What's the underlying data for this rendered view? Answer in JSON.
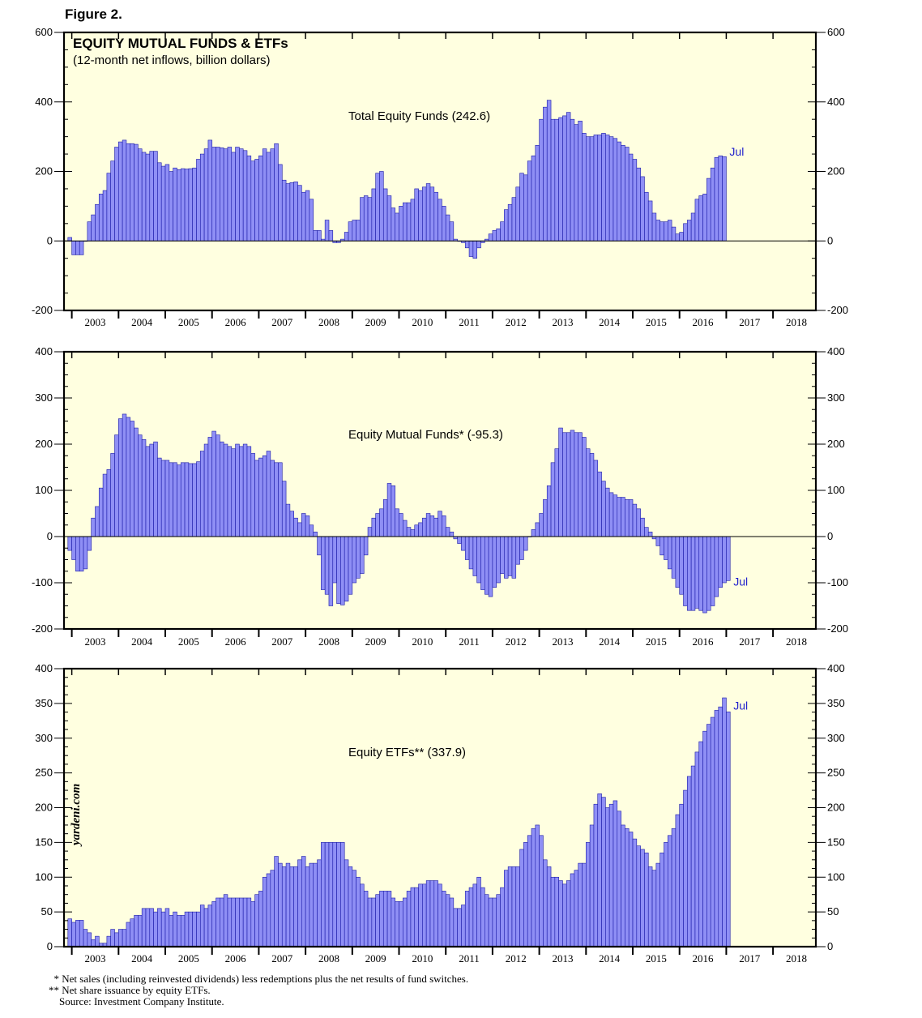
{
  "figure_label": "Figure 2.",
  "colors": {
    "bar_fill": "#8f8ff5",
    "bar_stroke": "#1a1aa8",
    "plot_bg": "#ffffe0",
    "accent": "#2222cc"
  },
  "chart_data": [
    {
      "type": "bar",
      "id": "total",
      "title": "EQUITY MUTUAL FUNDS & ETFs",
      "subtitle": "(12-month net inflows, billion dollars)",
      "series_label": "Total Equity Funds (242.6)",
      "end_label": "Jul",
      "ylim": [
        -200,
        600
      ],
      "y_ticks": [
        -200,
        0,
        200,
        400,
        600
      ],
      "x_labels": [
        "2003",
        "2004",
        "2005",
        "2006",
        "2007",
        "2008",
        "2009",
        "2010",
        "2011",
        "2012",
        "2013",
        "2014",
        "2015",
        "2016",
        "2017",
        "2018"
      ],
      "start": "2002-12",
      "end": "2017-07",
      "values": [
        10,
        -40,
        -40,
        -40,
        0,
        55,
        75,
        105,
        135,
        145,
        195,
        230,
        270,
        285,
        290,
        280,
        280,
        278,
        265,
        255,
        250,
        258,
        258,
        225,
        215,
        220,
        200,
        210,
        205,
        208,
        207,
        208,
        210,
        235,
        250,
        265,
        290,
        270,
        270,
        268,
        265,
        270,
        255,
        270,
        265,
        260,
        245,
        230,
        235,
        245,
        265,
        255,
        265,
        280,
        220,
        175,
        165,
        168,
        170,
        160,
        140,
        145,
        120,
        30,
        30,
        5,
        60,
        30,
        -5,
        -5,
        5,
        25,
        55,
        60,
        60,
        125,
        130,
        125,
        150,
        195,
        200,
        150,
        130,
        95,
        80,
        100,
        110,
        110,
        120,
        150,
        145,
        155,
        165,
        155,
        140,
        120,
        100,
        75,
        55,
        5,
        0,
        -5,
        -20,
        -45,
        -50,
        -20,
        -5,
        5,
        20,
        30,
        35,
        55,
        90,
        105,
        125,
        155,
        195,
        190,
        230,
        245,
        275,
        350,
        385,
        405,
        350,
        350,
        355,
        360,
        370,
        350,
        335,
        345,
        310,
        300,
        300,
        305,
        305,
        310,
        305,
        300,
        295,
        285,
        275,
        270,
        250,
        235,
        210,
        185,
        140,
        115,
        80,
        60,
        55,
        55,
        60,
        40,
        20,
        25,
        50,
        60,
        80,
        120,
        130,
        135,
        180,
        210,
        240,
        245,
        242.6
      ]
    },
    {
      "type": "bar",
      "id": "mutual",
      "series_label": "Equity Mutual Funds* (-95.3)",
      "end_label": "Jul",
      "ylim": [
        -200,
        400
      ],
      "y_ticks": [
        -200,
        -100,
        0,
        100,
        200,
        300,
        400
      ],
      "x_labels": [
        "2003",
        "2004",
        "2005",
        "2006",
        "2007",
        "2008",
        "2009",
        "2010",
        "2011",
        "2012",
        "2013",
        "2014",
        "2015",
        "2016",
        "2017",
        "2018"
      ],
      "start": "2002-12",
      "end": "2017-07",
      "values": [
        -30,
        -50,
        -75,
        -75,
        -70,
        -30,
        40,
        65,
        105,
        135,
        145,
        180,
        220,
        255,
        265,
        258,
        250,
        235,
        220,
        210,
        195,
        200,
        205,
        170,
        165,
        165,
        160,
        160,
        155,
        160,
        160,
        158,
        158,
        162,
        185,
        200,
        215,
        228,
        220,
        205,
        200,
        195,
        190,
        200,
        195,
        200,
        195,
        180,
        165,
        170,
        175,
        185,
        165,
        160,
        160,
        120,
        70,
        55,
        40,
        30,
        50,
        45,
        25,
        10,
        -40,
        -115,
        -125,
        -150,
        -100,
        -145,
        -148,
        -140,
        -125,
        -100,
        -90,
        -80,
        -40,
        20,
        40,
        50,
        60,
        80,
        115,
        110,
        60,
        50,
        35,
        20,
        15,
        25,
        30,
        40,
        50,
        45,
        40,
        55,
        45,
        20,
        10,
        -5,
        -15,
        -30,
        -50,
        -70,
        -85,
        -100,
        -115,
        -125,
        -130,
        -110,
        -100,
        -80,
        -90,
        -85,
        -90,
        -60,
        -50,
        -30,
        0,
        15,
        30,
        50,
        80,
        110,
        160,
        190,
        235,
        225,
        225,
        230,
        225,
        225,
        215,
        190,
        180,
        165,
        140,
        120,
        105,
        95,
        90,
        85,
        85,
        80,
        80,
        70,
        60,
        40,
        20,
        10,
        -5,
        -20,
        -40,
        -50,
        -70,
        -90,
        -110,
        -125,
        -150,
        -160,
        -160,
        -155,
        -160,
        -165,
        -160,
        -150,
        -130,
        -110,
        -100,
        -95.3
      ]
    },
    {
      "type": "bar",
      "id": "etf",
      "series_label": "Equity ETFs** (337.9)",
      "end_label": "Jul",
      "ylim": [
        0,
        400
      ],
      "y_ticks": [
        0,
        50,
        100,
        150,
        200,
        250,
        300,
        350,
        400
      ],
      "x_labels": [
        "2003",
        "2004",
        "2005",
        "2006",
        "2007",
        "2008",
        "2009",
        "2010",
        "2011",
        "2012",
        "2013",
        "2014",
        "2015",
        "2016",
        "2017",
        "2018"
      ],
      "start": "2002-12",
      "end": "2017-07",
      "values": [
        40,
        35,
        38,
        38,
        25,
        20,
        10,
        15,
        5,
        5,
        15,
        25,
        20,
        25,
        25,
        35,
        40,
        45,
        45,
        55,
        55,
        55,
        50,
        55,
        50,
        55,
        45,
        50,
        45,
        45,
        50,
        50,
        50,
        50,
        60,
        55,
        60,
        65,
        70,
        70,
        75,
        70,
        70,
        70,
        70,
        70,
        70,
        65,
        75,
        80,
        100,
        105,
        110,
        130,
        120,
        115,
        120,
        115,
        115,
        125,
        130,
        115,
        120,
        120,
        125,
        150,
        150,
        150,
        150,
        150,
        150,
        125,
        115,
        110,
        100,
        90,
        80,
        70,
        70,
        75,
        80,
        80,
        80,
        70,
        65,
        65,
        70,
        80,
        85,
        85,
        90,
        90,
        95,
        95,
        95,
        90,
        80,
        75,
        70,
        55,
        55,
        60,
        80,
        85,
        90,
        100,
        85,
        75,
        70,
        70,
        75,
        85,
        110,
        115,
        115,
        115,
        140,
        150,
        160,
        170,
        175,
        160,
        125,
        115,
        100,
        100,
        95,
        90,
        95,
        105,
        110,
        120,
        120,
        150,
        175,
        205,
        220,
        215,
        200,
        205,
        210,
        195,
        175,
        170,
        165,
        155,
        145,
        140,
        135,
        115,
        110,
        120,
        135,
        150,
        160,
        170,
        190,
        205,
        225,
        245,
        260,
        280,
        295,
        310,
        320,
        330,
        340,
        345,
        358,
        337.9
      ]
    }
  ],
  "watermark": "yardeni.com",
  "footnotes": [
    "  * Net sales (including reinvested dividends) less redemptions plus the net results of fund switches.",
    "** Net share issuance by equity ETFs.",
    "    Source: Investment Company Institute."
  ]
}
